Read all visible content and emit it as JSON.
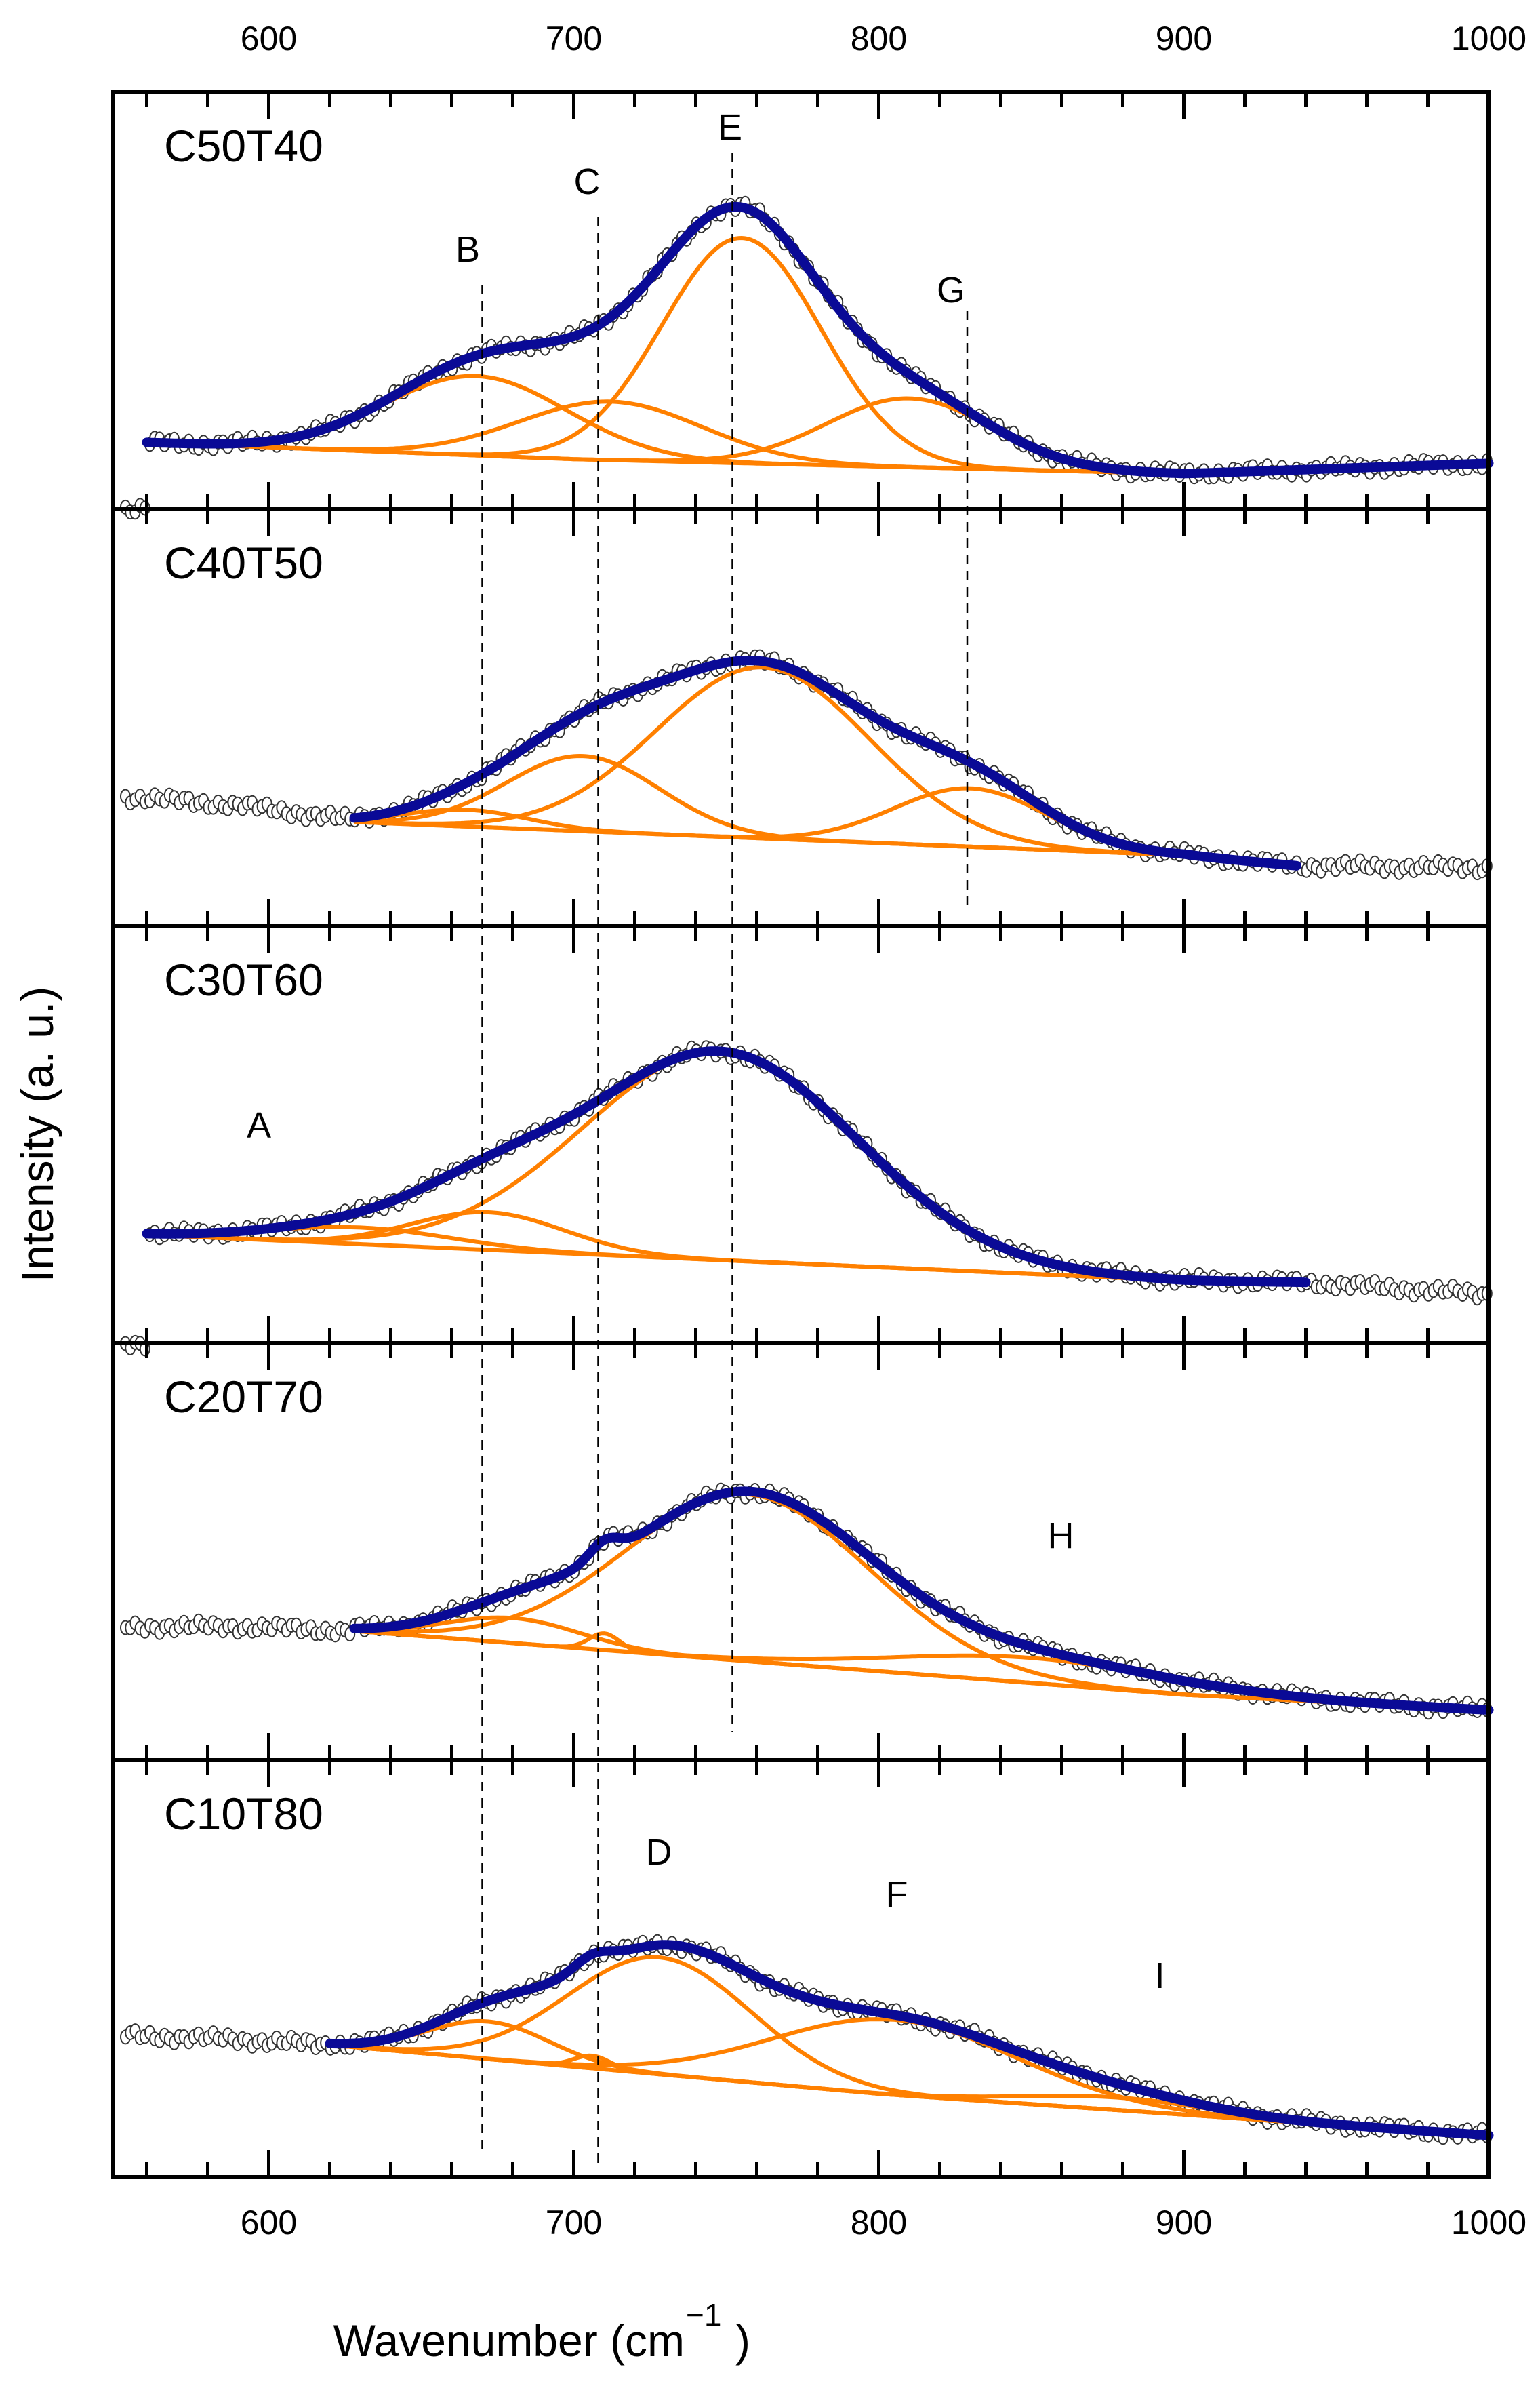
{
  "chart_data": {
    "type": "line",
    "xlabel": "Wavenumber (cm",
    "xlabel_sup": "−1",
    "xlabel_close": ")",
    "ylabel": "Intensity (a. u.)",
    "xlim": [
      549,
      1000
    ],
    "xticks": [
      600,
      700,
      800,
      900,
      1000
    ],
    "tick_labels": [
      "600",
      "700",
      "800",
      "900",
      "1000"
    ],
    "ylim": [
      0,
      100
    ],
    "grid": false,
    "colors": {
      "data": "#333333",
      "fit": "#0a0a96",
      "component": "#ff8000",
      "guide": "#000000"
    },
    "guide_lines": [
      {
        "label": "B",
        "x": 670
      },
      {
        "label": "C",
        "x": 708
      },
      {
        "label": "E",
        "x": 752
      },
      {
        "label": "G",
        "x": 829
      }
    ],
    "peak_letters": [
      "A",
      "B",
      "C",
      "D",
      "E",
      "F",
      "G",
      "H",
      "I"
    ],
    "panels": [
      {
        "name": "C50T40",
        "data_range": [
          553,
          1000
        ],
        "fit_range": [
          560,
          1000
        ],
        "pre_fit": [],
        "baseline": [
          [
            560,
            16
          ],
          [
            700,
            12
          ],
          [
            900,
            8.5
          ],
          [
            1000,
            11
          ]
        ],
        "components": [
          {
            "center": 668,
            "amplitude": 19,
            "sigma": 30
          },
          {
            "center": 712,
            "amplitude": 14,
            "sigma": 30
          },
          {
            "center": 755,
            "amplitude": 54,
            "sigma": 26
          },
          {
            "center": 810,
            "amplitude": 16.5,
            "sigma": 27
          }
        ]
      },
      {
        "name": "C40T50",
        "data_range": [
          553,
          1000
        ],
        "fit_range": [
          628,
          937
        ],
        "pre_fit": [
          [
            553,
            31
          ],
          [
            590,
            29
          ],
          [
            627,
            25.5
          ]
        ],
        "post_fit": [
          [
            937,
            14.5
          ],
          [
            1000,
            14
          ]
        ],
        "baseline": [
          [
            628,
            25
          ],
          [
            900,
            17
          ],
          [
            937,
            14.5
          ]
        ],
        "components": [
          {
            "center": 665,
            "amplitude": 4,
            "sigma": 20
          },
          {
            "center": 703,
            "amplitude": 18,
            "sigma": 25
          },
          {
            "center": 762,
            "amplitude": 41,
            "sigma": 35
          },
          {
            "center": 830,
            "amplitude": 14,
            "sigma": 25
          }
        ]
      },
      {
        "name": "C30T60",
        "data_range": [
          553,
          1000
        ],
        "fit_range": [
          560,
          940
        ],
        "pre_fit": [],
        "post_fit": [
          [
            940,
            14.6
          ],
          [
            1000,
            11.7
          ]
        ],
        "baseline": [
          [
            560,
            26
          ],
          [
            900,
            15
          ],
          [
            940,
            14.6
          ]
        ],
        "components": [
          {
            "center": 630,
            "amplitude": 4,
            "sigma": 30
          },
          {
            "center": 672,
            "amplitude": 9,
            "sigma": 25
          },
          {
            "center": 748,
            "amplitude": 50,
            "sigma": 45
          }
        ]
      },
      {
        "name": "C20T70",
        "data_range": [
          553,
          1000
        ],
        "fit_range": [
          628,
          1000
        ],
        "pre_fit": [
          [
            553,
            32
          ],
          [
            590,
            32
          ],
          [
            627,
            31
          ]
        ],
        "baseline": [
          [
            628,
            31
          ],
          [
            900,
            15.7
          ],
          [
            1000,
            12
          ]
        ],
        "components": [
          {
            "center": 680,
            "amplitude": 6,
            "sigma": 22
          },
          {
            "center": 710,
            "amplitude": 4,
            "sigma": 5
          },
          {
            "center": 757,
            "amplitude": 40,
            "sigma": 40
          },
          {
            "center": 850,
            "amplitude": 6,
            "sigma": 45
          }
        ]
      },
      {
        "name": "C10T80",
        "data_range": [
          553,
          1000
        ],
        "fit_range": [
          620,
          1000
        ],
        "pre_fit": [
          [
            553,
            34
          ],
          [
            590,
            33
          ],
          [
            619,
            31.7
          ]
        ],
        "baseline": [
          [
            620,
            31.7
          ],
          [
            800,
            20
          ],
          [
            1000,
            10
          ]
        ],
        "components": [
          {
            "center": 672,
            "amplitude": 9,
            "sigma": 20
          },
          {
            "center": 706,
            "amplitude": 3,
            "sigma": 6
          },
          {
            "center": 728,
            "amplitude": 28,
            "sigma": 30
          },
          {
            "center": 805,
            "amplitude": 18,
            "sigma": 40
          },
          {
            "center": 878,
            "amplitude": 3,
            "sigma": 30
          }
        ]
      }
    ]
  }
}
